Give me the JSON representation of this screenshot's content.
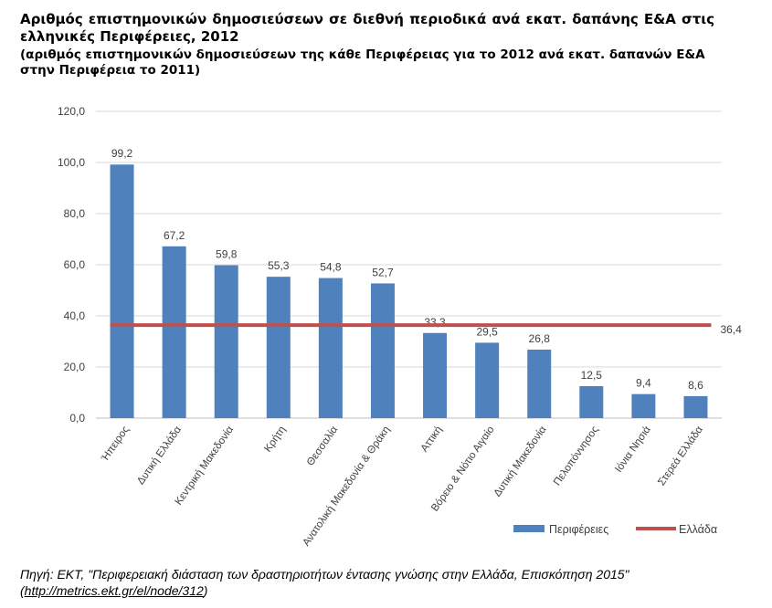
{
  "title": "Αριθμός επιστημονικών δημοσιεύσεων σε διεθνή περιοδικά ανά εκατ. δαπάνης Ε&Α στις ελληνικές Περιφέρειες, 2012",
  "subtitle": "(αριθμός επιστημονικών δημοσιεύσεων της κάθε Περιφέρειας για το 2012 ανά εκατ. δαπανών Ε&Α στην Περιφέρεια το 2011)",
  "source": {
    "text": "Πηγή: ΕΚΤ, \"Περιφερειακή διάσταση των δραστηριοτήτων έντασης γνώσης στην Ελλάδα, Επισκόπηση 2015\"",
    "link_open": "(",
    "link": "http://metrics.ekt.gr/el/node/312",
    "link_close": ")"
  },
  "chart_data": {
    "type": "bar",
    "categories": [
      "Ήπειρος",
      "Δυτική Ελλάδα",
      "Κεντρική Μακεδονία",
      "Κρήτη",
      "Θεσσαλία",
      "Ανατολική Μακεδονία & Θράκη",
      "Αττική",
      "Βόρειο & Νότιο Αιγαίο",
      "Δυτική Μακεδονία",
      "Πελοπόννησος",
      "Ιόνια Νησιά",
      "Στερεά Ελλάδα"
    ],
    "series": [
      {
        "name": "Περιφέρειες",
        "type": "bar",
        "color": "#4f81bd",
        "values": [
          99.2,
          67.2,
          59.8,
          55.3,
          54.8,
          52.7,
          33.3,
          29.5,
          26.8,
          12.5,
          9.4,
          8.6
        ],
        "labels": [
          "99,2",
          "67,2",
          "59,8",
          "55,3",
          "54,8",
          "52,7",
          "33,3",
          "29,5",
          "26,8",
          "12,5",
          "9,4",
          "8,6"
        ]
      },
      {
        "name": "Ελλάδα",
        "type": "line",
        "color": "#c0504d",
        "value": 36.4,
        "label": "36,4"
      }
    ],
    "ylim": [
      0,
      120
    ],
    "yticks": [
      0,
      20,
      40,
      60,
      80,
      100,
      120
    ],
    "ytick_labels": [
      "0,0",
      "20,0",
      "40,0",
      "60,0",
      "80,0",
      "100,0",
      "120,0"
    ],
    "grid": true,
    "legend": "bottom-right",
    "xlabel": "",
    "ylabel": ""
  }
}
